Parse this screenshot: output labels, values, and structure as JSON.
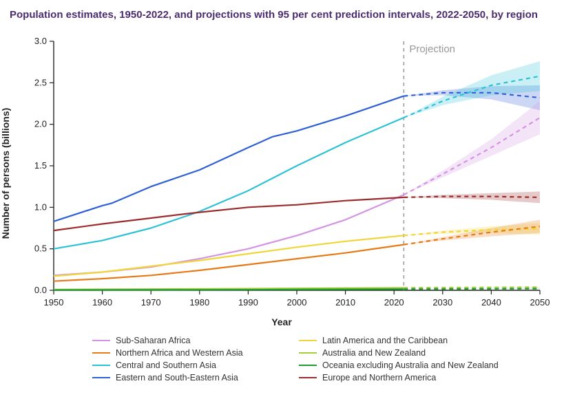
{
  "title": "Population estimates, 1950-2022, and projections with 95 per cent prediction intervals, 2022-2050, by region",
  "title_color": "#4a2c6f",
  "chart": {
    "type": "line",
    "background_color": "#ffffff",
    "projection_label": "Projection",
    "projection_x": 2022,
    "projection_line_color": "#9e9e9e",
    "xlabel": "Year",
    "ylabel": "Number of persons (billions)",
    "label_fontsize": 14,
    "tick_fontsize": 13,
    "xlim": [
      1950,
      2050
    ],
    "ylim": [
      0.0,
      3.0
    ],
    "xticks": [
      1950,
      1960,
      1970,
      1980,
      1990,
      2000,
      2010,
      2020,
      2030,
      2040,
      2050
    ],
    "yticks": [
      0.0,
      0.5,
      1.0,
      1.5,
      2.0,
      2.5,
      3.0
    ],
    "line_width_solid": 2.2,
    "line_width_dash": 2.2,
    "ci_opacity": 0.25,
    "series": [
      {
        "id": "eseasia",
        "label": "Eastern and South-Eastern Asia",
        "color": "#2f5fd6",
        "legend_col": 0,
        "legend_row": 3,
        "historical": [
          [
            1950,
            0.83
          ],
          [
            1960,
            1.02
          ],
          [
            1962,
            1.05
          ],
          [
            1970,
            1.25
          ],
          [
            1980,
            1.45
          ],
          [
            1990,
            1.72
          ],
          [
            1995,
            1.85
          ],
          [
            2000,
            1.92
          ],
          [
            2010,
            2.1
          ],
          [
            2022,
            2.34
          ]
        ],
        "projection": [
          [
            2022,
            2.34
          ],
          [
            2030,
            2.38
          ],
          [
            2040,
            2.38
          ],
          [
            2050,
            2.32
          ]
        ],
        "ci_lower": [
          [
            2022,
            2.34
          ],
          [
            2030,
            2.35
          ],
          [
            2040,
            2.3
          ],
          [
            2050,
            2.17
          ]
        ],
        "ci_upper": [
          [
            2022,
            2.34
          ],
          [
            2030,
            2.41
          ],
          [
            2040,
            2.46
          ],
          [
            2050,
            2.47
          ]
        ]
      },
      {
        "id": "csasia",
        "label": "Central and Southern Asia",
        "color": "#2cc2d6",
        "legend_col": 0,
        "legend_row": 2,
        "historical": [
          [
            1950,
            0.5
          ],
          [
            1960,
            0.6
          ],
          [
            1970,
            0.75
          ],
          [
            1980,
            0.95
          ],
          [
            1990,
            1.2
          ],
          [
            2000,
            1.5
          ],
          [
            2010,
            1.78
          ],
          [
            2022,
            2.08
          ]
        ],
        "projection": [
          [
            2022,
            2.08
          ],
          [
            2030,
            2.28
          ],
          [
            2040,
            2.47
          ],
          [
            2050,
            2.58
          ]
        ],
        "ci_lower": [
          [
            2022,
            2.08
          ],
          [
            2030,
            2.23
          ],
          [
            2040,
            2.35
          ],
          [
            2050,
            2.4
          ]
        ],
        "ci_upper": [
          [
            2022,
            2.08
          ],
          [
            2030,
            2.33
          ],
          [
            2040,
            2.59
          ],
          [
            2050,
            2.76
          ]
        ]
      },
      {
        "id": "ssafrica",
        "label": "Sub-Saharan Africa",
        "color": "#d493e3",
        "legend_col": 0,
        "legend_row": 0,
        "historical": [
          [
            1950,
            0.18
          ],
          [
            1960,
            0.22
          ],
          [
            1970,
            0.28
          ],
          [
            1980,
            0.38
          ],
          [
            1990,
            0.5
          ],
          [
            2000,
            0.66
          ],
          [
            2010,
            0.85
          ],
          [
            2022,
            1.15
          ]
        ],
        "projection": [
          [
            2022,
            1.15
          ],
          [
            2030,
            1.4
          ],
          [
            2040,
            1.72
          ],
          [
            2050,
            2.08
          ]
        ],
        "ci_lower": [
          [
            2022,
            1.15
          ],
          [
            2030,
            1.36
          ],
          [
            2040,
            1.62
          ],
          [
            2050,
            1.88
          ]
        ],
        "ci_upper": [
          [
            2022,
            1.15
          ],
          [
            2030,
            1.44
          ],
          [
            2040,
            1.82
          ],
          [
            2050,
            2.28
          ]
        ]
      },
      {
        "id": "europena",
        "label": "Europe and Northern America",
        "color": "#9c2b2b",
        "legend_col": 1,
        "legend_row": 3,
        "historical": [
          [
            1950,
            0.72
          ],
          [
            1960,
            0.8
          ],
          [
            1970,
            0.87
          ],
          [
            1977,
            0.92
          ],
          [
            1980,
            0.94
          ],
          [
            1990,
            1.0
          ],
          [
            2000,
            1.03
          ],
          [
            2010,
            1.08
          ],
          [
            2022,
            1.12
          ]
        ],
        "projection": [
          [
            2022,
            1.12
          ],
          [
            2030,
            1.13
          ],
          [
            2040,
            1.13
          ],
          [
            2050,
            1.12
          ]
        ],
        "ci_lower": [
          [
            2022,
            1.12
          ],
          [
            2030,
            1.11
          ],
          [
            2040,
            1.09
          ],
          [
            2050,
            1.05
          ]
        ],
        "ci_upper": [
          [
            2022,
            1.12
          ],
          [
            2030,
            1.15
          ],
          [
            2040,
            1.17
          ],
          [
            2050,
            1.19
          ]
        ]
      },
      {
        "id": "lac",
        "label": "Latin America and the Caribbean",
        "color": "#f0d638",
        "legend_col": 1,
        "legend_row": 0,
        "historical": [
          [
            1950,
            0.17
          ],
          [
            1960,
            0.22
          ],
          [
            1970,
            0.29
          ],
          [
            1980,
            0.36
          ],
          [
            1990,
            0.44
          ],
          [
            2000,
            0.52
          ],
          [
            2010,
            0.59
          ],
          [
            2022,
            0.66
          ]
        ],
        "projection": [
          [
            2022,
            0.66
          ],
          [
            2030,
            0.7
          ],
          [
            2040,
            0.73
          ],
          [
            2050,
            0.74
          ]
        ],
        "ci_lower": [
          [
            2022,
            0.66
          ],
          [
            2030,
            0.68
          ],
          [
            2040,
            0.69
          ],
          [
            2050,
            0.67
          ]
        ],
        "ci_upper": [
          [
            2022,
            0.66
          ],
          [
            2030,
            0.72
          ],
          [
            2040,
            0.77
          ],
          [
            2050,
            0.81
          ]
        ]
      },
      {
        "id": "nawa",
        "label": "Northern Africa and Western Asia",
        "color": "#e67a17",
        "legend_col": 0,
        "legend_row": 1,
        "historical": [
          [
            1950,
            0.11
          ],
          [
            1960,
            0.14
          ],
          [
            1970,
            0.18
          ],
          [
            1980,
            0.24
          ],
          [
            1990,
            0.31
          ],
          [
            2000,
            0.38
          ],
          [
            2010,
            0.45
          ],
          [
            2022,
            0.55
          ]
        ],
        "projection": [
          [
            2022,
            0.55
          ],
          [
            2030,
            0.62
          ],
          [
            2040,
            0.7
          ],
          [
            2050,
            0.77
          ]
        ],
        "ci_lower": [
          [
            2022,
            0.55
          ],
          [
            2030,
            0.6
          ],
          [
            2040,
            0.65
          ],
          [
            2050,
            0.69
          ]
        ],
        "ci_upper": [
          [
            2022,
            0.55
          ],
          [
            2030,
            0.64
          ],
          [
            2040,
            0.75
          ],
          [
            2050,
            0.85
          ]
        ]
      },
      {
        "id": "anz",
        "label": "Australia and New Zealand",
        "color": "#a9cc3b",
        "legend_col": 1,
        "legend_row": 1,
        "historical": [
          [
            1950,
            0.01
          ],
          [
            1970,
            0.015
          ],
          [
            1990,
            0.02
          ],
          [
            2010,
            0.027
          ],
          [
            2022,
            0.031
          ]
        ],
        "projection": [
          [
            2022,
            0.031
          ],
          [
            2050,
            0.038
          ]
        ],
        "ci_lower": [
          [
            2022,
            0.031
          ],
          [
            2050,
            0.034
          ]
        ],
        "ci_upper": [
          [
            2022,
            0.031
          ],
          [
            2050,
            0.042
          ]
        ]
      },
      {
        "id": "oceania",
        "label": "Oceania excluding Australia and New Zealand",
        "color": "#1a9e2e",
        "legend_col": 1,
        "legend_row": 2,
        "historical": [
          [
            1950,
            0.003
          ],
          [
            1980,
            0.006
          ],
          [
            2000,
            0.009
          ],
          [
            2022,
            0.014
          ]
        ],
        "projection": [
          [
            2022,
            0.014
          ],
          [
            2050,
            0.02
          ]
        ],
        "ci_lower": [
          [
            2022,
            0.014
          ],
          [
            2050,
            0.017
          ]
        ],
        "ci_upper": [
          [
            2022,
            0.014
          ],
          [
            2050,
            0.023
          ]
        ]
      }
    ]
  }
}
